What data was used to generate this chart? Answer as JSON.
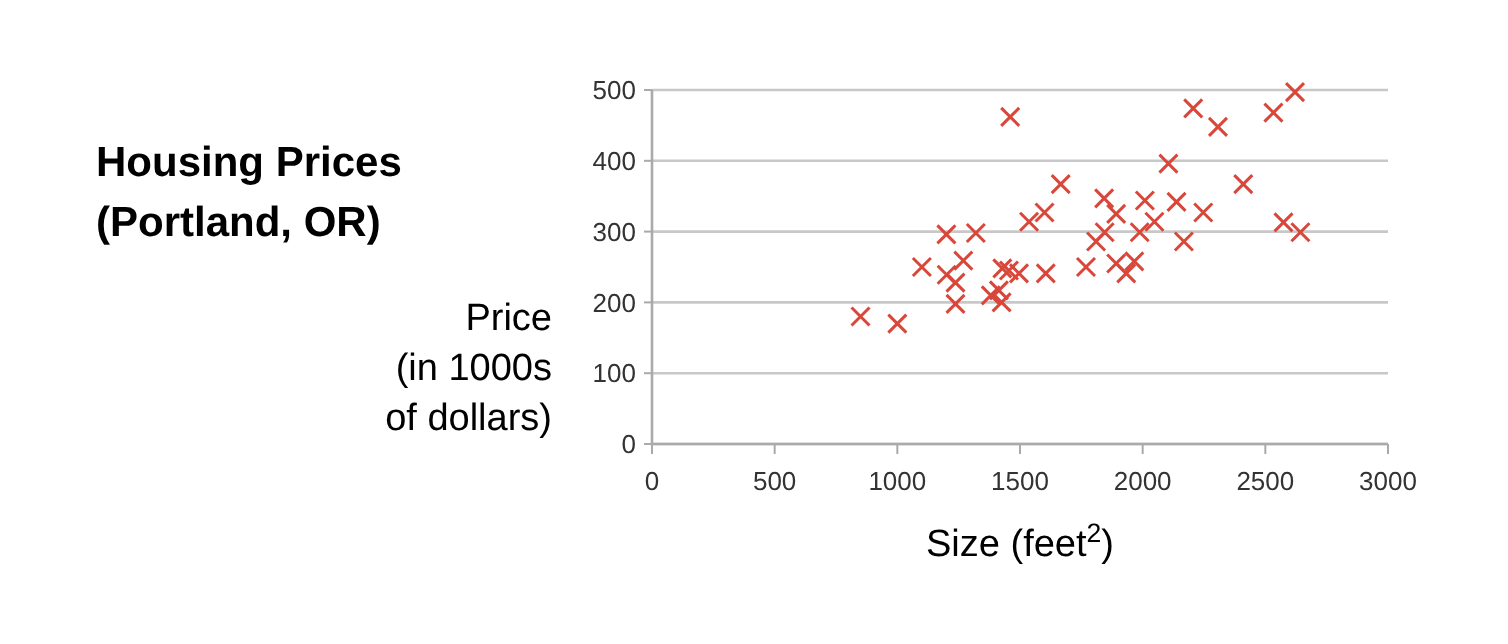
{
  "chart_data": {
    "type": "scatter",
    "title": "Housing Prices\n(Portland, OR)",
    "ylabel": "Price\n(in 1000s\nof dollars)",
    "xlabel": "Size (feet$^{2}$)",
    "x": [
      850,
      1000,
      1100,
      1200,
      1320,
      1460,
      1537,
      1269,
      1201,
      1237,
      1237,
      1381,
      1414,
      1425,
      1428,
      1455,
      1496,
      1600,
      1666,
      1605,
      1769,
      1810,
      1845,
      1843,
      1892,
      1892,
      1933,
      1966,
      1988,
      2009,
      2048,
      2105,
      2138,
      2168,
      2206,
      2247,
      2307,
      2410,
      2533,
      2574,
      2621,
      2643
    ],
    "values": [
      180,
      170,
      250,
      296,
      298,
      462,
      314,
      259,
      239,
      228,
      198,
      210,
      217,
      200,
      248,
      245,
      241,
      327,
      367,
      241,
      250,
      286,
      299,
      347,
      325,
      255,
      241,
      258,
      299,
      344,
      314,
      396,
      342,
      286,
      474,
      327,
      448,
      367,
      468,
      313,
      497,
      299
    ],
    "color": "#d9473a",
    "marker": "cross",
    "grid": "y",
    "xlim": [
      0,
      3000
    ],
    "xticks": [
      0,
      500,
      1000,
      1500,
      2000,
      2500,
      3000
    ],
    "ylim": [
      0,
      500
    ],
    "yticks": [
      0,
      100,
      200,
      300,
      400,
      500
    ]
  }
}
